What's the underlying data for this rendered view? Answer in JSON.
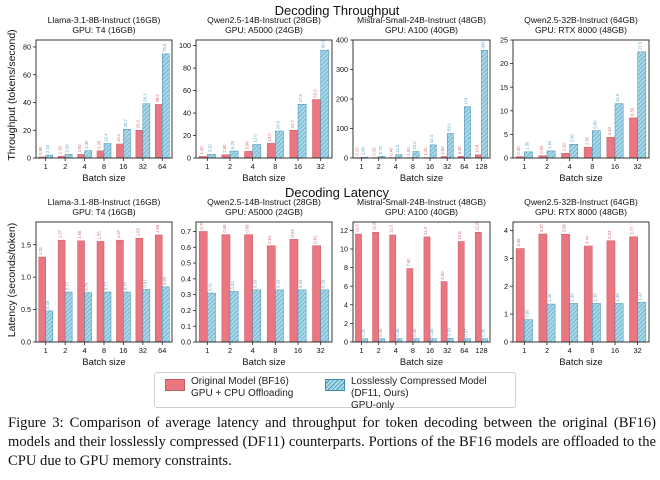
{
  "figure": {
    "throughput_title": "Decoding Throughput",
    "latency_title": "Decoding Latency",
    "throughput_ylabel": "Throughput (tokens/second)",
    "latency_ylabel": "Latency (seconds/token)",
    "xlabel": "Batch size"
  },
  "legend": {
    "original_line1": "Original Model (BF16)",
    "original_line2": "GPU + CPU Offloading",
    "df11_line1": "Losslessly Compressed Model (DF11, Ours)",
    "df11_line2": "GPU-only"
  },
  "caption": {
    "text": "Figure 3: Comparison of average latency and throughput for token decoding between the original (BF16) models and their losslessly compressed (DF11) counterparts. Portions of the BF16 models are offloaded to the CPU due to GPU memory constraints."
  },
  "colors": {
    "original": "#e97680",
    "df11": "#9fd0e3",
    "df11_hatch": "#4f9bbd"
  },
  "chart_data": [
    {
      "type": "bar",
      "metric": "throughput",
      "title": "Llama-3.1-8B-Instruct (16GB)",
      "subtitle": "GPU: T4 (16GB)",
      "xlabel": "Batch size",
      "ylabel": "Throughput (tokens/second)",
      "categories": [
        "1",
        "2",
        "4",
        "8",
        "16",
        "32",
        "64"
      ],
      "ylim": [
        0,
        85
      ],
      "yticks": [
        0,
        20,
        40,
        60,
        80
      ],
      "series": [
        {
          "name": "Original Model (BF16)",
          "values": [
            0.8,
            1.3,
            2.6,
            5.2,
            10.1,
            20.0,
            38.6
          ]
        },
        {
          "name": "Losslessly Compressed Model (DF11, Ours)",
          "values": [
            2.1,
            2.6,
            5.3,
            10.4,
            20.7,
            39.1,
            75.0
          ]
        }
      ]
    },
    {
      "type": "bar",
      "metric": "throughput",
      "title": "Qwen2.5-14B-Instruct (28GB)",
      "subtitle": "GPU: A5000 (24GB)",
      "xlabel": "Batch size",
      "ylabel": "",
      "categories": [
        "1",
        "2",
        "4",
        "8",
        "16",
        "32"
      ],
      "ylim": [
        0,
        105
      ],
      "yticks": [
        0,
        20,
        40,
        60,
        80,
        100
      ],
      "series": [
        {
          "name": "Original Model (BF16)",
          "values": [
            1.4,
            2.9,
            5.9,
            13.0,
            24.7,
            52.0
          ]
        },
        {
          "name": "Losslessly Compressed Model (DF11, Ours)",
          "values": [
            3.2,
            6.2,
            12.0,
            24.0,
            47.8,
            96.0
          ]
        }
      ]
    },
    {
      "type": "bar",
      "metric": "throughput",
      "title": "Mistral-Small-24B-Instruct (48GB)",
      "subtitle": "GPU: A100 (40GB)",
      "xlabel": "Batch size",
      "ylabel": "",
      "categories": [
        "1",
        "2",
        "4",
        "8",
        "16",
        "32",
        "64",
        "128"
      ],
      "ylim": [
        0,
        400
      ],
      "yticks": [
        0,
        100,
        200,
        300,
        400
      ],
      "series": [
        {
          "name": "Original Model (BF16)",
          "values": [
            0.1,
            0.2,
            0.4,
            1.0,
            1.4,
            4.9,
            5.9,
            10.8
          ]
        },
        {
          "name": "Losslessly Compressed Model (DF11, Ours)",
          "values": [
            2.8,
            5.7,
            11.2,
            22.0,
            44.4,
            83.0,
            173.8,
            365.0
          ]
        }
      ]
    },
    {
      "type": "bar",
      "metric": "throughput",
      "title": "Qwen2.5-32B-Instruct (64GB)",
      "subtitle": "GPU: RTX 8000 (48GB)",
      "xlabel": "Batch size",
      "ylabel": "",
      "categories": [
        "1",
        "2",
        "4",
        "8",
        "16",
        "32"
      ],
      "ylim": [
        0,
        25
      ],
      "yticks": [
        0,
        5,
        10,
        15,
        20,
        25
      ],
      "series": [
        {
          "name": "Original Model (BF16)",
          "values": [
            0.3,
            0.5,
            1.0,
            2.3,
            4.4,
            8.5
          ]
        },
        {
          "name": "Losslessly Compressed Model (DF11, Ours)",
          "values": [
            1.3,
            1.5,
            2.9,
            5.8,
            11.5,
            22.5
          ]
        }
      ]
    },
    {
      "type": "bar",
      "metric": "latency",
      "title": "Llama-3.1-8B-Instruct (16GB)",
      "subtitle": "GPU: T4 (16GB)",
      "xlabel": "Batch size",
      "ylabel": "Latency (seconds/token)",
      "categories": [
        "1",
        "2",
        "4",
        "8",
        "16",
        "32",
        "64"
      ],
      "ylim": [
        0,
        1.85
      ],
      "yticks": [
        0,
        0.5,
        1.0,
        1.5
      ],
      "series": [
        {
          "name": "Original Model (BF16)",
          "values": [
            1.31,
            1.57,
            1.56,
            1.55,
            1.57,
            1.6,
            1.65
          ]
        },
        {
          "name": "Losslessly Compressed Model (DF11, Ours)",
          "values": [
            0.48,
            0.77,
            0.76,
            0.77,
            0.77,
            0.81,
            0.85
          ]
        }
      ]
    },
    {
      "type": "bar",
      "metric": "latency",
      "title": "Qwen2.5-14B-Instruct (28GB)",
      "subtitle": "GPU: A5000 (24GB)",
      "xlabel": "Batch size",
      "ylabel": "",
      "categories": [
        "1",
        "2",
        "4",
        "8",
        "16",
        "32"
      ],
      "ylim": [
        0,
        0.76
      ],
      "yticks": [
        0.0,
        0.1,
        0.2,
        0.3,
        0.4,
        0.5,
        0.6,
        0.7
      ],
      "series": [
        {
          "name": "Original Model (BF16)",
          "values": [
            0.7,
            0.68,
            0.68,
            0.61,
            0.65,
            0.61
          ]
        },
        {
          "name": "Losslessly Compressed Model (DF11, Ours)",
          "values": [
            0.31,
            0.32,
            0.33,
            0.33,
            0.33,
            0.33
          ]
        }
      ]
    },
    {
      "type": "bar",
      "metric": "latency",
      "title": "Mistral-Small-24B-Instruct (48GB)",
      "subtitle": "GPU: A100 (40GB)",
      "xlabel": "Batch size",
      "ylabel": "",
      "categories": [
        "1",
        "2",
        "4",
        "8",
        "16",
        "32",
        "64",
        "128"
      ],
      "ylim": [
        0,
        12.9
      ],
      "yticks": [
        0,
        2,
        4,
        6,
        8,
        10,
        12
      ],
      "series": [
        {
          "name": "Original Model (BF16)",
          "values": [
            11.6,
            11.8,
            11.5,
            7.9,
            11.3,
            6.5,
            10.8,
            11.8
          ]
        },
        {
          "name": "Losslessly Compressed Model (DF11, Ours)",
          "values": [
            0.35,
            0.35,
            0.36,
            0.36,
            0.36,
            0.39,
            0.37,
            0.35
          ]
        }
      ]
    },
    {
      "type": "bar",
      "metric": "latency",
      "title": "Qwen2.5-32B-Instruct (64GB)",
      "subtitle": "GPU: RTX 8000 (48GB)",
      "xlabel": "Batch size",
      "ylabel": "",
      "categories": [
        "1",
        "2",
        "4",
        "8",
        "16",
        "32"
      ],
      "ylim": [
        0,
        4.3
      ],
      "yticks": [
        0,
        1,
        2,
        3,
        4
      ],
      "series": [
        {
          "name": "Original Model (BF16)",
          "values": [
            3.35,
            3.87,
            3.86,
            3.44,
            3.63,
            3.77
          ]
        },
        {
          "name": "Losslessly Compressed Model (DF11, Ours)",
          "values": [
            0.8,
            1.36,
            1.38,
            1.38,
            1.38,
            1.42
          ]
        }
      ]
    }
  ]
}
